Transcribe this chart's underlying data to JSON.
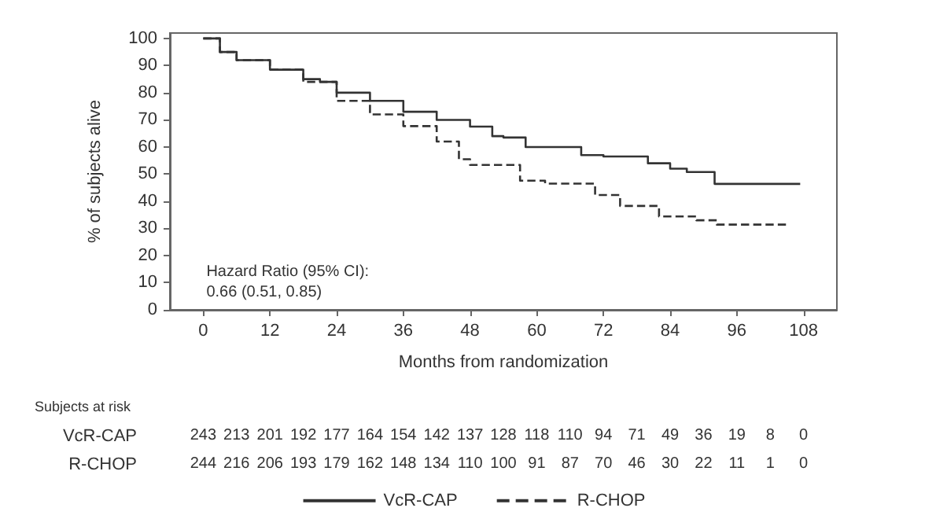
{
  "chart_data": {
    "type": "step",
    "xlabel": "Months from randomization",
    "ylabel": "% of subjects alive",
    "xlim": [
      -6,
      114
    ],
    "ylim": [
      0,
      102
    ],
    "xticks": [
      0,
      12,
      24,
      36,
      48,
      60,
      72,
      84,
      96,
      108
    ],
    "yticks": [
      0,
      10,
      20,
      30,
      40,
      50,
      60,
      70,
      80,
      90,
      100
    ],
    "grid": false,
    "legend": "bottom",
    "marker": "none",
    "series": [
      {
        "name": "VcR-CAP",
        "color": "#333333",
        "line_style": "solid",
        "x": [
          0,
          3,
          6,
          12,
          18,
          21,
          24,
          30,
          36,
          42,
          48,
          52,
          54,
          58,
          60,
          68,
          72,
          80,
          84,
          87,
          91.5,
          92,
          107.4
        ],
        "values": [
          100,
          95,
          92,
          88.5,
          85,
          84,
          80,
          77,
          73,
          70,
          67.5,
          64,
          63.5,
          60,
          60,
          57,
          56.5,
          54,
          52,
          50.8,
          50.8,
          46.4,
          46.4
        ]
      },
      {
        "name": "R-CHOP",
        "color": "#333333",
        "line_style": "dashed",
        "x": [
          0,
          3,
          6,
          12,
          18,
          24,
          30,
          36,
          42,
          46,
          48,
          57,
          61.5,
          70.5,
          75,
          82,
          88.7,
          92.4,
          105.5
        ],
        "values": [
          100,
          95,
          92,
          88.5,
          84,
          77,
          72,
          67.7,
          62,
          55.5,
          53.4,
          47.6,
          46.5,
          42.3,
          38.3,
          34.4,
          33,
          31.4,
          31.4
        ]
      }
    ],
    "annotations": [
      "Hazard Ratio (95% CI):",
      "0.66 (0.51, 0.85)",
      "Subjects at risk",
      "243 213 201 192 177 164 154 142 137 128 118 110 94 71 49 36 19 8 0",
      "244 216 206 193 179 162 148 134 110 100 91 87 70 46 30 22 11 1 0"
    ]
  }
}
